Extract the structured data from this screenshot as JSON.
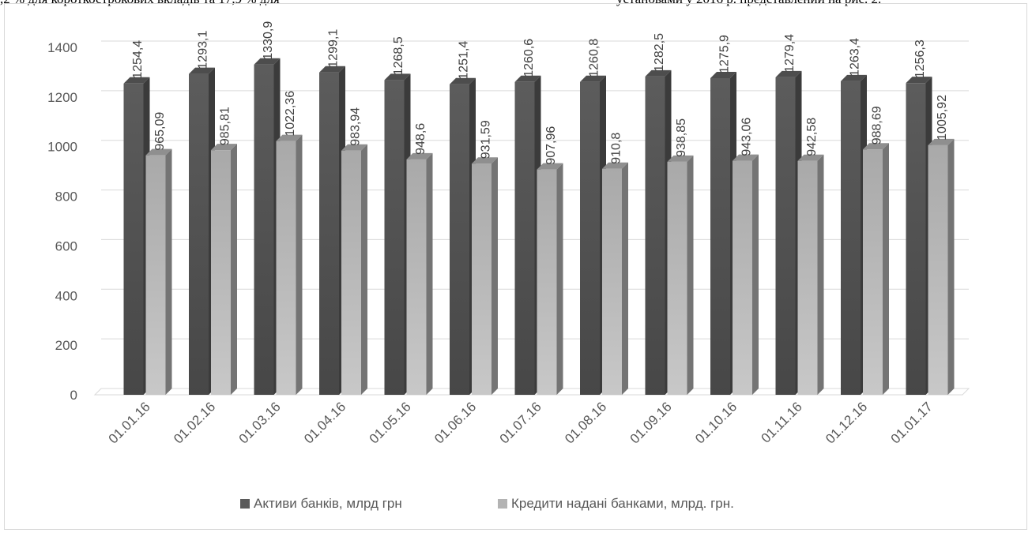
{
  "document": {
    "top_line_left": ",2 % для короткострокових вкладів та 17,9 % для",
    "top_line_right": "установами у 2016 р. представлений на рис. 2."
  },
  "chart_data": {
    "type": "bar",
    "categories": [
      "01.01.16",
      "01.02.16",
      "01.03.16",
      "01.04.16",
      "01.05.16",
      "01.06.16",
      "01.07.16",
      "01.08.16",
      "01.09.16",
      "01.10.16",
      "01.11.16",
      "01.12.16",
      "01.01.17"
    ],
    "series": [
      {
        "name": "Активи банків, млрд грн",
        "values": [
          1254.4,
          1293.1,
          1330.9,
          1299.1,
          1268.5,
          1251.4,
          1260.6,
          1260.8,
          1282.5,
          1275.9,
          1279.4,
          1263.4,
          1256.3
        ],
        "labels": [
          "1254,4",
          "1293,1",
          "1330,9",
          "1299,1",
          "1268,5",
          "1251,4",
          "1260,6",
          "1260,8",
          "1282,5",
          "1275,9",
          "1279,4",
          "1263,4",
          "1256,3"
        ],
        "color": "#5a5a5a"
      },
      {
        "name": "Кредити надані банками, млрд. грн.",
        "values": [
          965.09,
          985.81,
          1022.36,
          983.94,
          948.6,
          931.59,
          907.96,
          910.8,
          938.85,
          943.06,
          942.58,
          988.69,
          1005.92
        ],
        "labels": [
          "965,09",
          "985,81",
          "1022,36",
          "983,94",
          "948,6",
          "931,59",
          "907,96",
          "910,8",
          "938,85",
          "943,06",
          "942,58",
          "988,69",
          "1005,92"
        ],
        "color": "#b3b3b3"
      }
    ],
    "yticks": [
      "0",
      "200",
      "400",
      "600",
      "800",
      "1000",
      "1200",
      "1400"
    ],
    "ylim": [
      0,
      1400
    ],
    "grid": true,
    "legend_position": "bottom",
    "style": "3d-column"
  }
}
